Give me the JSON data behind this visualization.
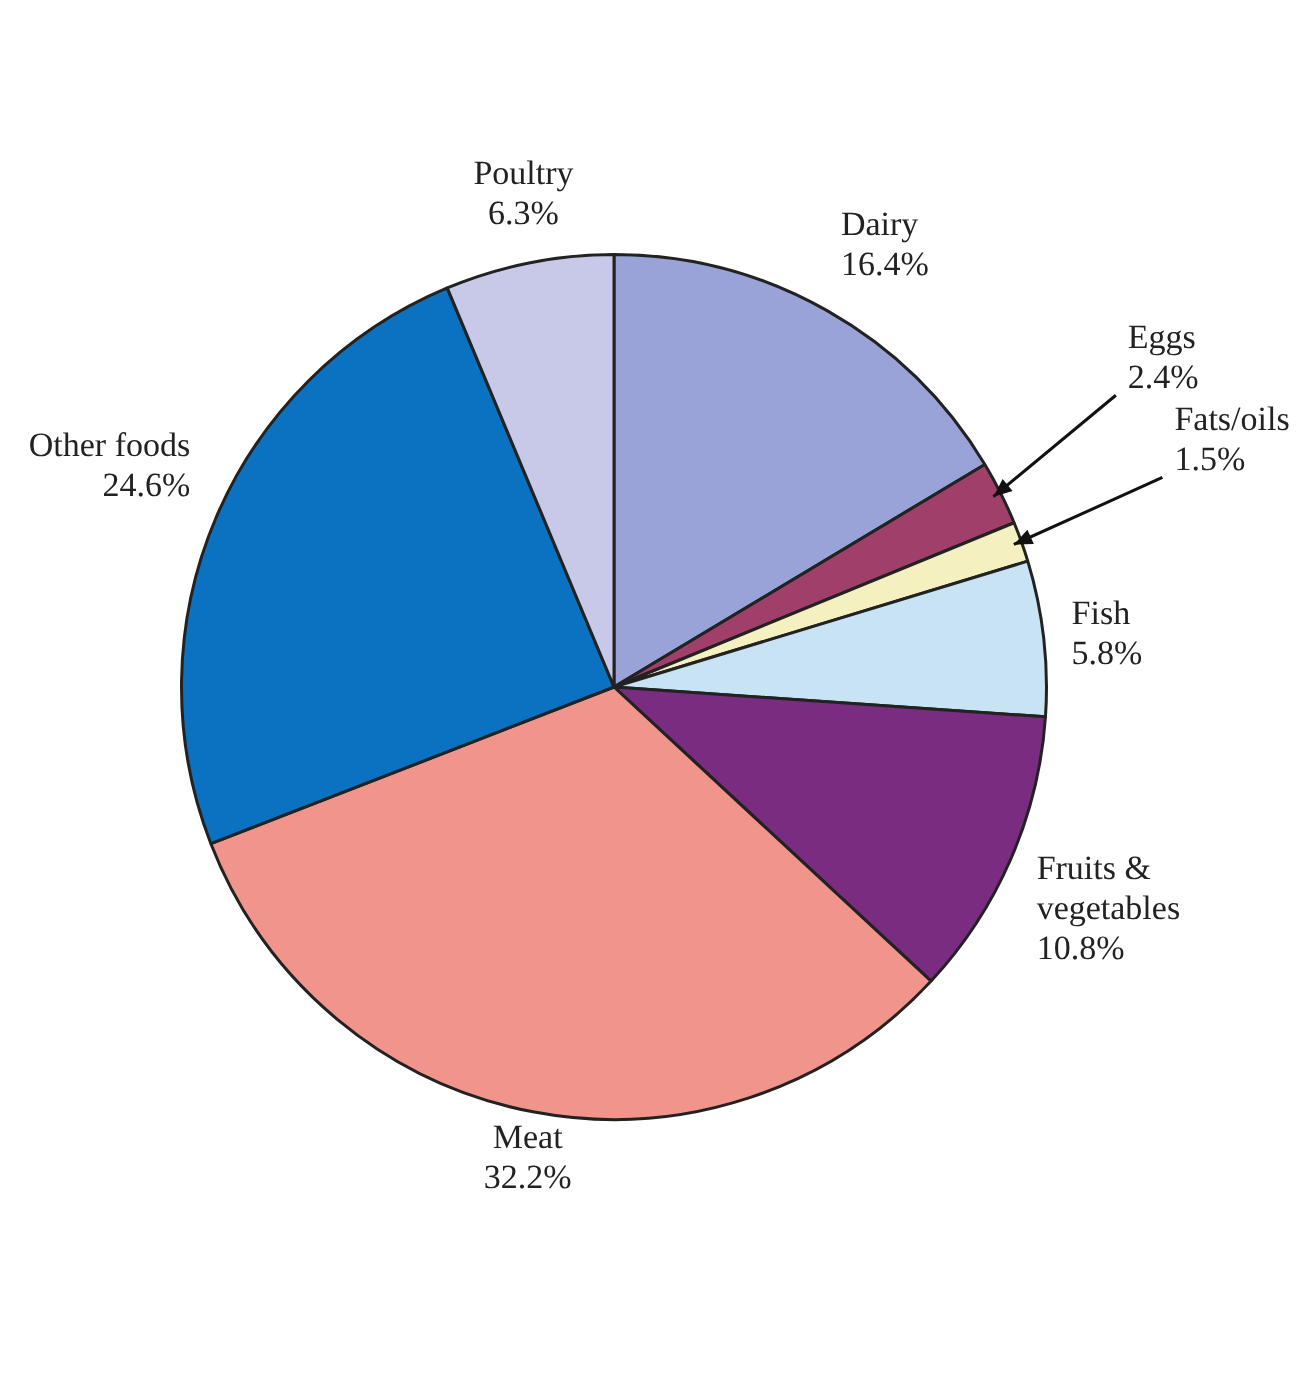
{
  "chart_data": {
    "type": "pie",
    "categories": [
      "Dairy",
      "Eggs",
      "Fats/oils",
      "Fish",
      "Fruits & vegetables",
      "Meat",
      "Other foods",
      "Poultry"
    ],
    "values": [
      16.4,
      2.4,
      1.5,
      5.8,
      10.8,
      32.2,
      24.6,
      6.3
    ],
    "colors": [
      "#9aa3d8",
      "#a0406a",
      "#f5f0c0",
      "#c8e4f4",
      "#7a2c80",
      "#f0948c",
      "#0a72c0",
      "#c8c8e8"
    ],
    "value_labels": [
      "16.4%",
      "2.4%",
      "1.5%",
      "5.8%",
      "10.8%",
      "32.2%",
      "24.6%",
      "6.3%"
    ],
    "legend": false
  }
}
